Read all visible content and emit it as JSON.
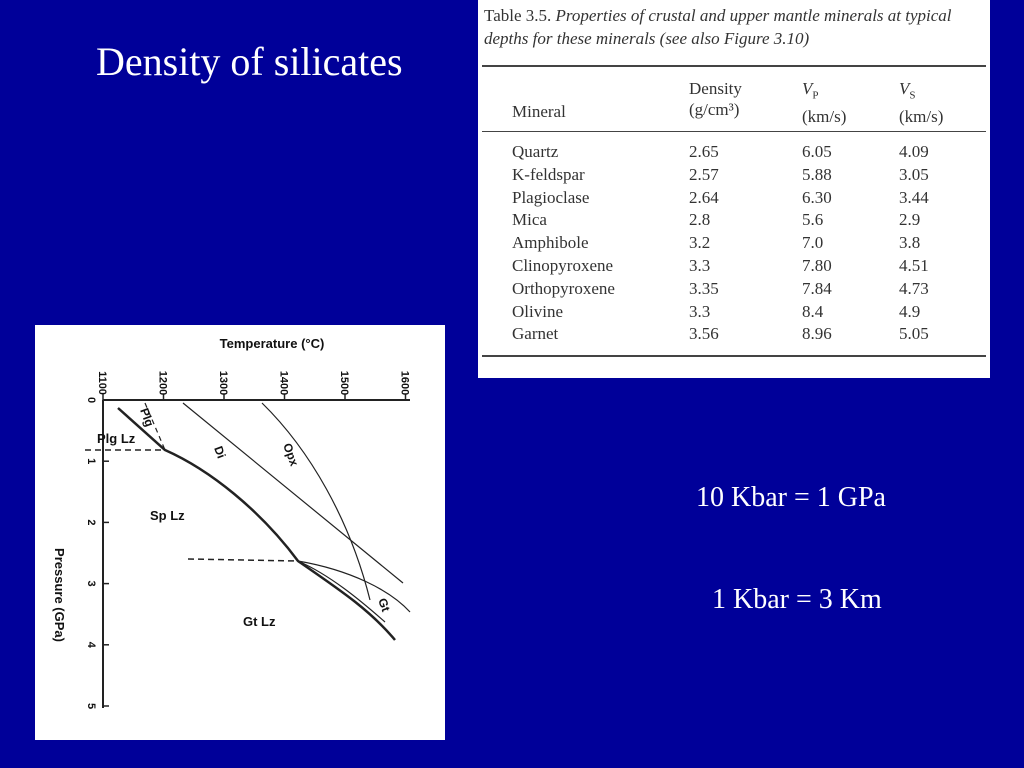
{
  "title": "Density of silicates",
  "table": {
    "caption_label": "Table 3.5.",
    "caption_text": "Properties of crustal and upper mantle minerals at typical depths for these minerals (see also Figure 3.10)",
    "headers": [
      {
        "name": "Mineral"
      },
      {
        "name": "Density",
        "unit": "(g/cm³)"
      },
      {
        "name": "V",
        "sub": "P",
        "unit": "(km/s)"
      },
      {
        "name": "V",
        "sub": "S",
        "unit": "(km/s)"
      }
    ],
    "rows": [
      [
        "Quartz",
        "2.65",
        "6.05",
        "4.09"
      ],
      [
        "K-feldspar",
        "2.57",
        "5.88",
        "3.05"
      ],
      [
        "Plagioclase",
        "2.64",
        "6.30",
        "3.44"
      ],
      [
        "Mica",
        "2.8",
        "5.6",
        "2.9"
      ],
      [
        "Amphibole",
        "3.2",
        "7.0",
        "3.8"
      ],
      [
        "Clinopyroxene",
        "3.3",
        "7.80",
        "4.51"
      ],
      [
        "Orthopyroxene",
        "3.35",
        "7.84",
        "4.73"
      ],
      [
        "Olivine",
        "3.3",
        "8.4",
        "4.9"
      ],
      [
        "Garnet",
        "3.56",
        "8.96",
        "5.05"
      ]
    ]
  },
  "diagram": {
    "x_title": "Temperature (°C)",
    "y_title": "Pressure (GPa)",
    "x_ticks": [
      "1100",
      "1200",
      "1300",
      "1400",
      "1500",
      "1600"
    ],
    "y_ticks": [
      "0",
      "1",
      "2",
      "3",
      "4",
      "5"
    ],
    "regions": [
      "Plg Lz",
      "Sp Lz",
      "Gt Lz"
    ],
    "curves": [
      "Plg",
      "Di",
      "Opx",
      "Gt"
    ]
  },
  "notes": [
    "10 Kbar = 1 GPa",
    "1 Kbar = 3 Km"
  ]
}
